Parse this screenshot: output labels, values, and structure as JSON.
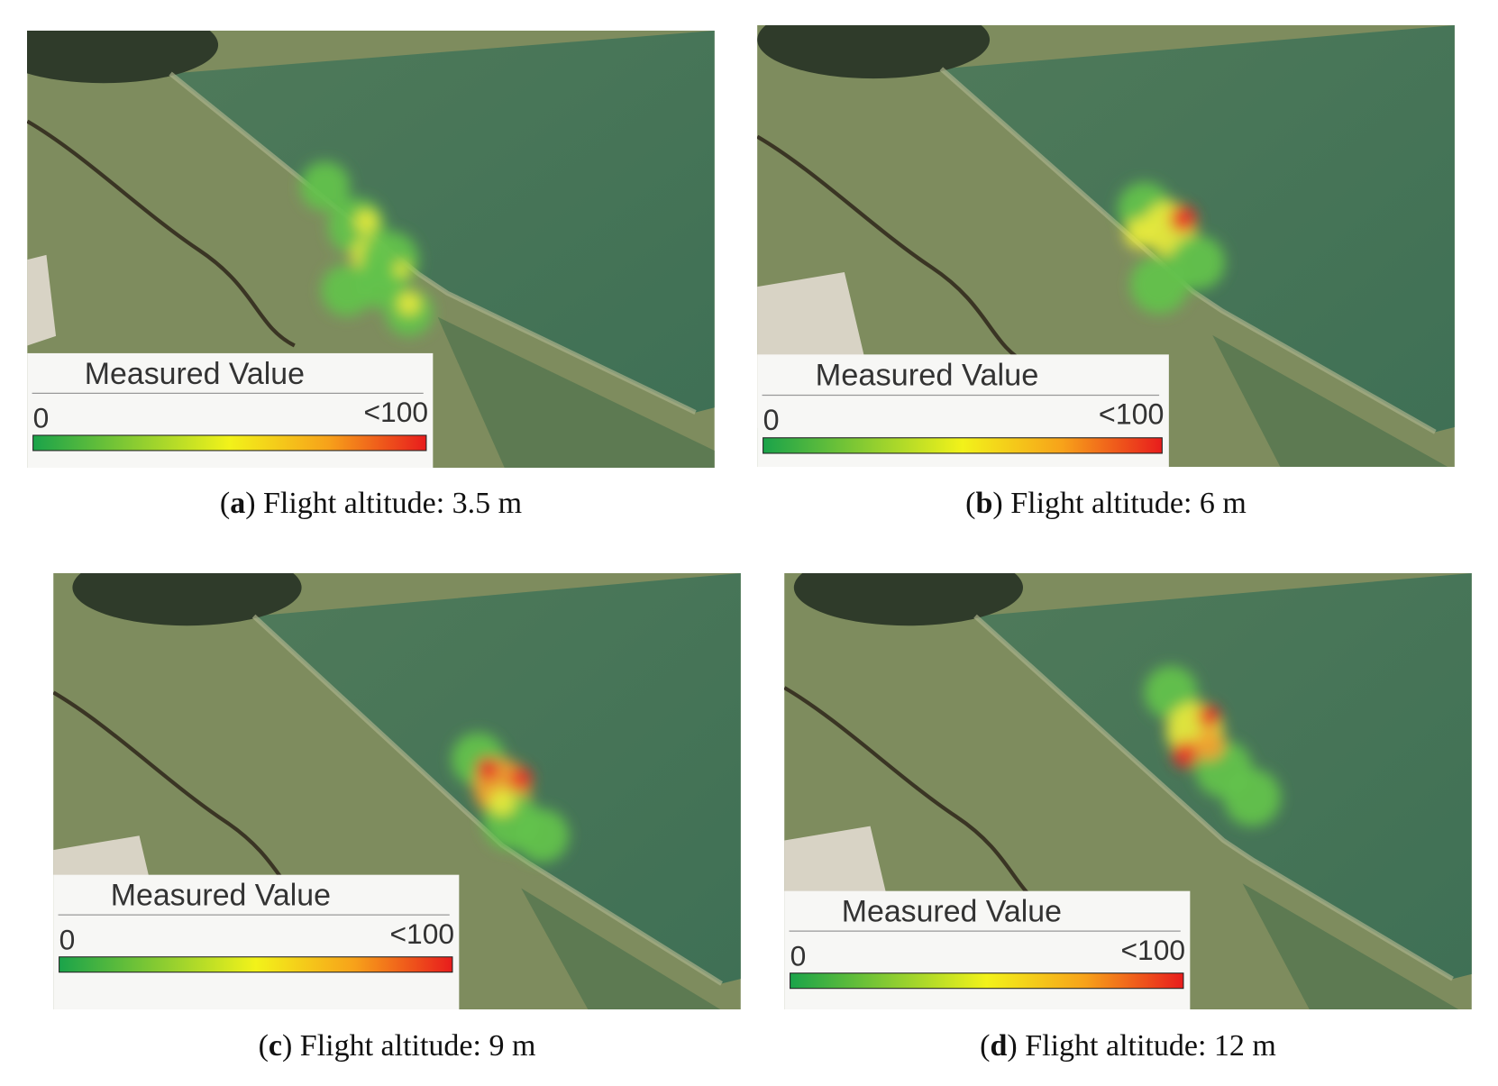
{
  "panels": [
    {
      "legend": {
        "title": "Measured Value",
        "min": "0",
        "max": "<100"
      },
      "caption": {
        "open": "(",
        "label": "a",
        "text": ") Flight altitude: 3.5 m"
      }
    },
    {
      "legend": {
        "title": "Measured Value",
        "min": "0",
        "max": "<100"
      },
      "caption": {
        "open": "(",
        "label": "b",
        "text": ") Flight altitude: 6 m"
      }
    },
    {
      "legend": {
        "title": "Measured Value",
        "min": "0",
        "max": "<100"
      },
      "caption": {
        "open": "(",
        "label": "c",
        "text": ") Flight altitude: 9 m"
      }
    },
    {
      "legend": {
        "title": "Measured Value",
        "min": "0",
        "max": "<100"
      },
      "caption": {
        "open": "(",
        "label": "d",
        "text": ") Flight altitude: 12 m"
      }
    }
  ]
}
